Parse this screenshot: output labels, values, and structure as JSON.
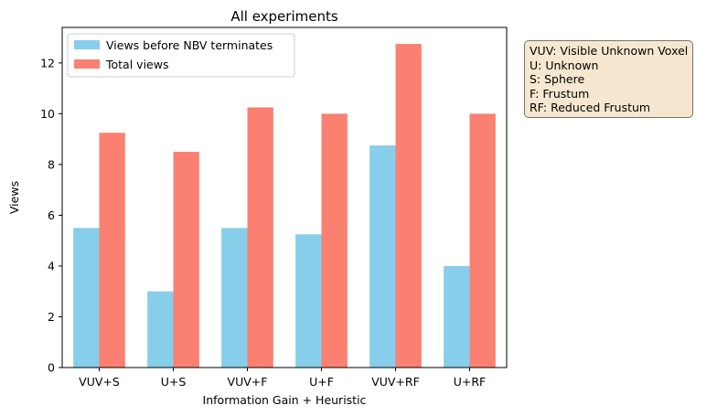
{
  "chart_data": {
    "type": "bar",
    "title": "All experiments",
    "xlabel": "Information Gain + Heuristic",
    "ylabel": "Views",
    "categories": [
      "VUV+S",
      "U+S",
      "VUV+F",
      "U+F",
      "VUV+RF",
      "U+RF"
    ],
    "series": [
      {
        "name": "Views before NBV terminates",
        "color": "#87ceeb",
        "values": [
          5.5,
          3.0,
          5.5,
          5.25,
          8.75,
          4.0
        ]
      },
      {
        "name": "Total views",
        "color": "#fa8072",
        "values": [
          9.25,
          8.5,
          10.25,
          10.0,
          12.75,
          10.0
        ]
      }
    ],
    "ylim": [
      0,
      13.4
    ],
    "yticks": [
      "0",
      "2",
      "4",
      "6",
      "8",
      "10",
      "12"
    ],
    "legend_position": "top-left",
    "grid": false
  },
  "annotation": {
    "lines": [
      "VUV: Visible Unknown Voxel",
      "U: Unknown",
      "S: Sphere",
      "F: Frustum",
      "RF: Reduced Frustum"
    ]
  }
}
